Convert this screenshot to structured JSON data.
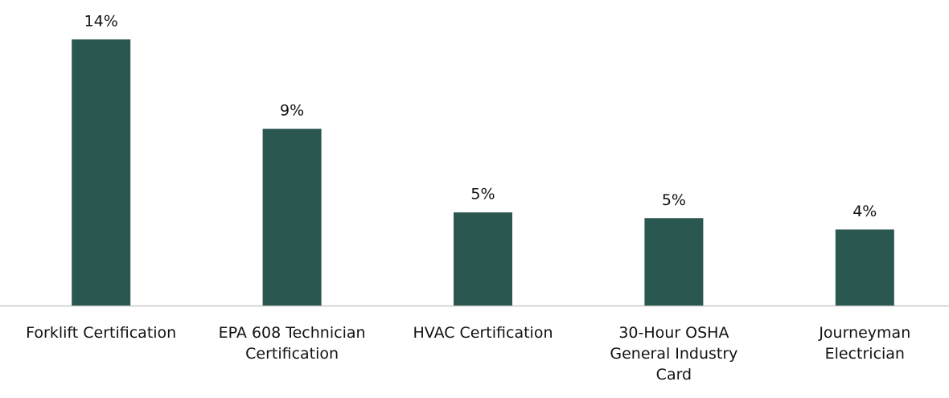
{
  "chart_data": {
    "type": "bar",
    "categories": [
      "Forklift Certification",
      "EPA 608 Technician Certification",
      "HVAC Certification",
      "30-Hour OSHA General Industry Card",
      "Journeyman Electrician"
    ],
    "values": [
      14,
      9.3,
      4.9,
      4.6,
      4
    ],
    "value_labels": [
      "14%",
      "9%",
      "5%",
      "5%",
      "4%"
    ],
    "color": "#2a5750",
    "ylim": [
      0,
      15
    ]
  }
}
